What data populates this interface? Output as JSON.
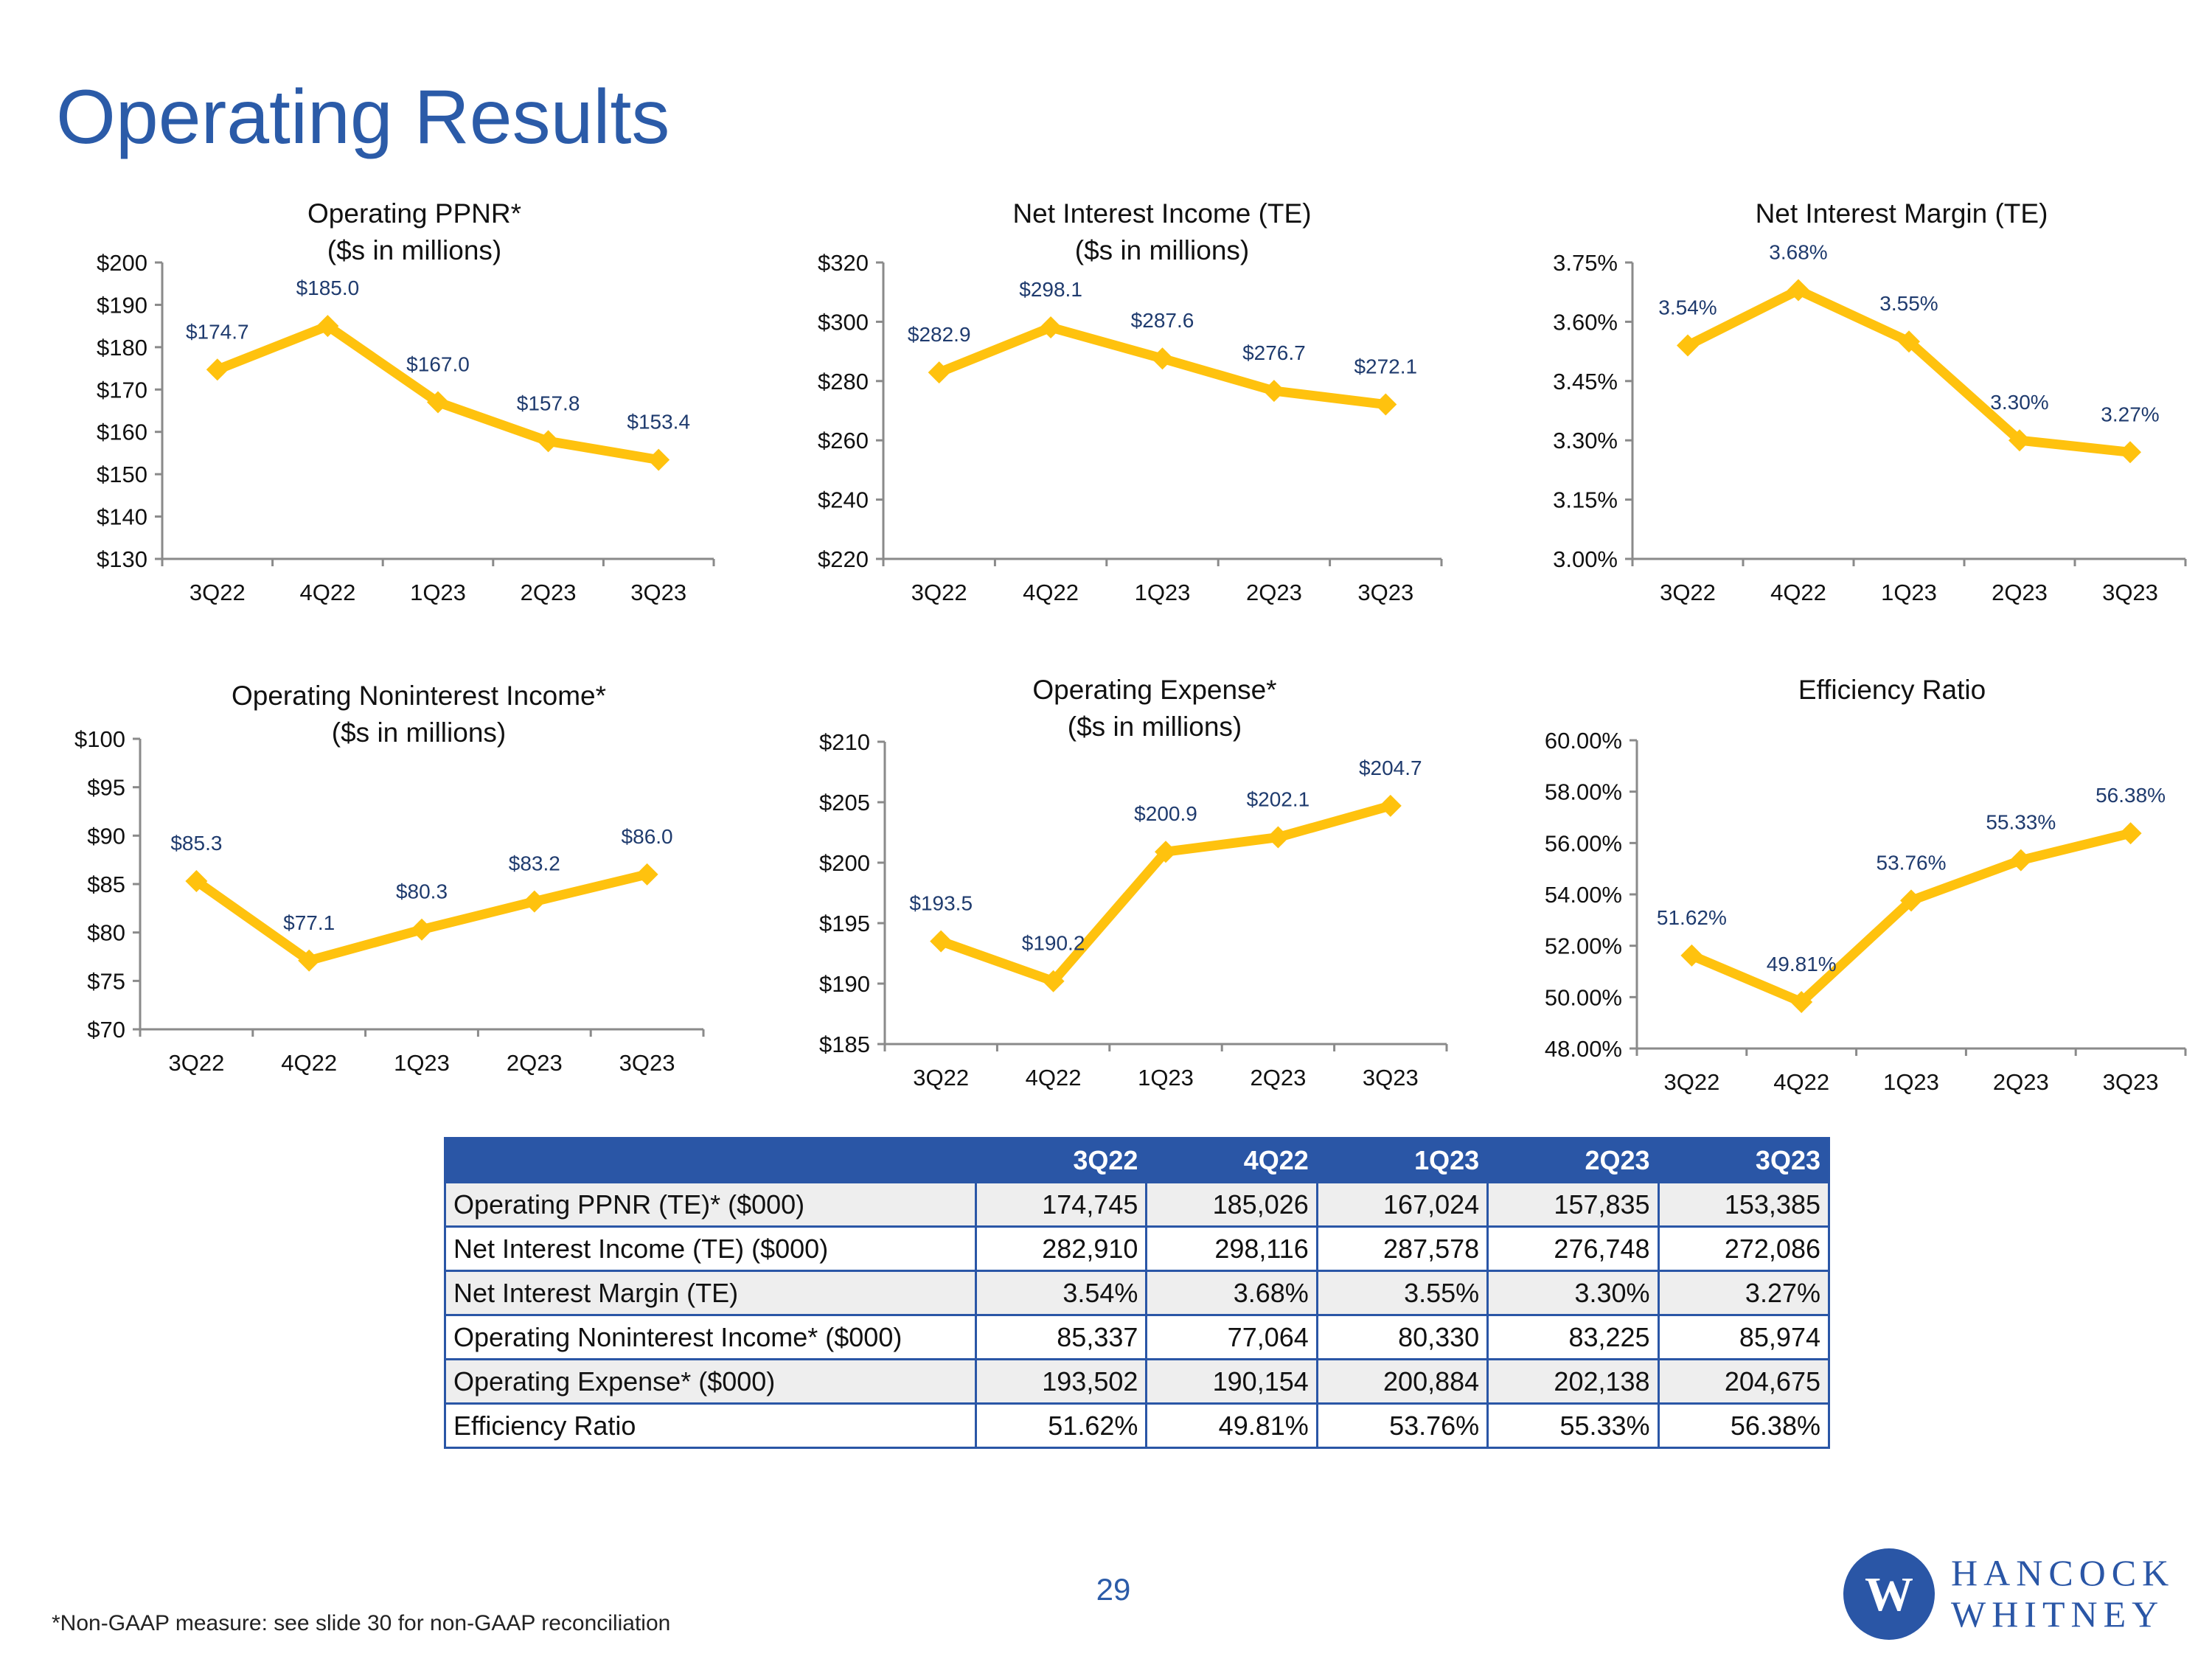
{
  "page": {
    "title": "Operating Results",
    "page_number": "29",
    "footnote": "*Non-GAAP measure: see slide 30 for non-GAAP reconciliation",
    "logo": {
      "line1": "HANCOCK",
      "line2": "WHITNEY",
      "glyph": "W"
    },
    "colors": {
      "series": "#ffc20e",
      "title": "#2b5ba8",
      "table_header": "#2a56a6",
      "data_label": "#1f3b6e"
    }
  },
  "chart_data": [
    {
      "type": "line",
      "title": [
        "Operating PPNR*",
        "($s in millions)"
      ],
      "categories": [
        "3Q22",
        "4Q22",
        "1Q23",
        "2Q23",
        "3Q23"
      ],
      "values": [
        174.7,
        185.0,
        167.0,
        157.8,
        153.4
      ],
      "data_labels": [
        "$174.7",
        "$185.0",
        "$167.0",
        "$157.8",
        "$153.4"
      ],
      "ylim": [
        130,
        200
      ],
      "yticks": [
        130,
        140,
        150,
        160,
        170,
        180,
        190,
        200
      ],
      "ytick_labels": [
        "$130",
        "$140",
        "$150",
        "$160",
        "$170",
        "$180",
        "$190",
        "$200"
      ],
      "xlabel": "",
      "ylabel": ""
    },
    {
      "type": "line",
      "title": [
        "Net Interest Income (TE)",
        "($s in millions)"
      ],
      "categories": [
        "3Q22",
        "4Q22",
        "1Q23",
        "2Q23",
        "3Q23"
      ],
      "values": [
        282.9,
        298.1,
        287.6,
        276.7,
        272.1
      ],
      "data_labels": [
        "$282.9",
        "$298.1",
        "$287.6",
        "$276.7",
        "$272.1"
      ],
      "ylim": [
        220,
        320
      ],
      "yticks": [
        220,
        240,
        260,
        280,
        300,
        320
      ],
      "ytick_labels": [
        "$220",
        "$240",
        "$260",
        "$280",
        "$300",
        "$320"
      ],
      "xlabel": "",
      "ylabel": ""
    },
    {
      "type": "line",
      "title": [
        "Net Interest Margin (TE)"
      ],
      "categories": [
        "3Q22",
        "4Q22",
        "1Q23",
        "2Q23",
        "3Q23"
      ],
      "values": [
        3.54,
        3.68,
        3.55,
        3.3,
        3.27
      ],
      "data_labels": [
        "3.54%",
        "3.68%",
        "3.55%",
        "3.30%",
        "3.27%"
      ],
      "ylim": [
        3.0,
        3.75
      ],
      "yticks": [
        3.0,
        3.15,
        3.3,
        3.45,
        3.6,
        3.75
      ],
      "ytick_labels": [
        "3.00%",
        "3.15%",
        "3.30%",
        "3.45%",
        "3.60%",
        "3.75%"
      ],
      "xlabel": "",
      "ylabel": ""
    },
    {
      "type": "line",
      "title": [
        "Operating Noninterest Income*",
        "($s in millions)"
      ],
      "categories": [
        "3Q22",
        "4Q22",
        "1Q23",
        "2Q23",
        "3Q23"
      ],
      "values": [
        85.3,
        77.1,
        80.3,
        83.2,
        86.0
      ],
      "data_labels": [
        "$85.3",
        "$77.1",
        "$80.3",
        "$83.2",
        "$86.0"
      ],
      "ylim": [
        70,
        100
      ],
      "yticks": [
        70,
        75,
        80,
        85,
        90,
        95,
        100
      ],
      "ytick_labels": [
        "$70",
        "$75",
        "$80",
        "$85",
        "$90",
        "$95",
        "$100"
      ],
      "xlabel": "",
      "ylabel": ""
    },
    {
      "type": "line",
      "title": [
        "Operating Expense*",
        "($s in millions)"
      ],
      "categories": [
        "3Q22",
        "4Q22",
        "1Q23",
        "2Q23",
        "3Q23"
      ],
      "values": [
        193.5,
        190.2,
        200.9,
        202.1,
        204.7
      ],
      "data_labels": [
        "$193.5",
        "$190.2",
        "$200.9",
        "$202.1",
        "$204.7"
      ],
      "ylim": [
        185,
        210
      ],
      "yticks": [
        185,
        190,
        195,
        200,
        205,
        210
      ],
      "ytick_labels": [
        "$185",
        "$190",
        "$195",
        "$200",
        "$205",
        "$210"
      ],
      "xlabel": "",
      "ylabel": ""
    },
    {
      "type": "line",
      "title": [
        "Efficiency Ratio"
      ],
      "categories": [
        "3Q22",
        "4Q22",
        "1Q23",
        "2Q23",
        "3Q23"
      ],
      "values": [
        51.62,
        49.81,
        53.76,
        55.33,
        56.38
      ],
      "data_labels": [
        "51.62%",
        "49.81%",
        "53.76%",
        "55.33%",
        "56.38%"
      ],
      "ylim": [
        48,
        60
      ],
      "yticks": [
        48,
        50,
        52,
        54,
        56,
        58,
        60
      ],
      "ytick_labels": [
        "48.00%",
        "50.00%",
        "52.00%",
        "54.00%",
        "56.00%",
        "58.00%",
        "60.00%"
      ],
      "xlabel": "",
      "ylabel": ""
    }
  ],
  "table": {
    "type": "table",
    "headers": [
      "",
      "3Q22",
      "4Q22",
      "1Q23",
      "2Q23",
      "3Q23"
    ],
    "rows": [
      [
        "Operating PPNR (TE)* ($000)",
        "174,745",
        "185,026",
        "167,024",
        "157,835",
        "153,385"
      ],
      [
        "Net Interest Income (TE) ($000)",
        "282,910",
        "298,116",
        "287,578",
        "276,748",
        "272,086"
      ],
      [
        "Net Interest Margin (TE)",
        "3.54%",
        "3.68%",
        "3.55%",
        "3.30%",
        "3.27%"
      ],
      [
        "Operating Noninterest Income* ($000)",
        "85,337",
        "77,064",
        "80,330",
        "83,225",
        "85,974"
      ],
      [
        "Operating Expense* ($000)",
        "193,502",
        "190,154",
        "200,884",
        "202,138",
        "204,675"
      ],
      [
        "Efficiency Ratio",
        "51.62%",
        "49.81%",
        "53.76%",
        "55.33%",
        "56.38%"
      ]
    ]
  }
}
